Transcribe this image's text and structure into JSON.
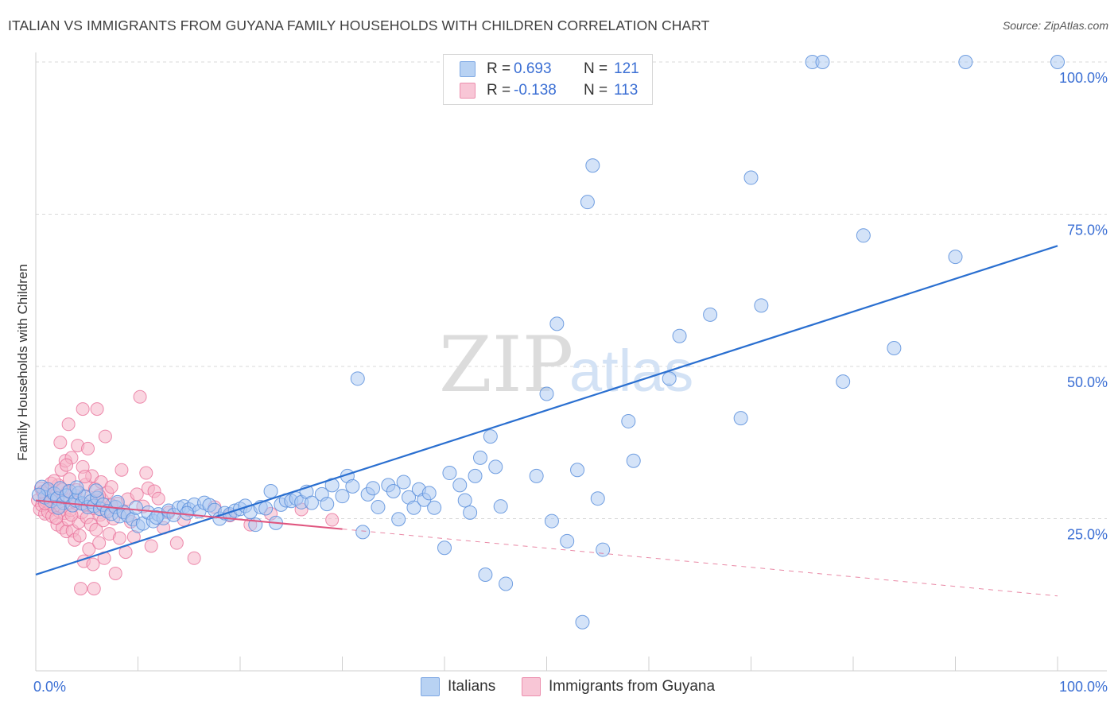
{
  "title": "ITALIAN VS IMMIGRANTS FROM GUYANA FAMILY HOUSEHOLDS WITH CHILDREN CORRELATION CHART",
  "source": "Source: ZipAtlas.com",
  "watermark": {
    "zip": "ZIP",
    "atlas": "atlas"
  },
  "legend": {
    "italians": {
      "r_label": "R =",
      "r_value": "0.693",
      "n_label": "N =",
      "n_value": "121"
    },
    "guyana": {
      "r_label": "R =",
      "r_value": "-0.138",
      "n_label": "N =",
      "n_value": "113"
    }
  },
  "bottom_legend": {
    "italians": "Italians",
    "guyana": "Immigrants from Guyana"
  },
  "colors": {
    "blue_fill": "#a9c8f2",
    "blue_stroke": "#5a8fdc",
    "blue_line": "#2a6fd0",
    "pink_fill": "#f6b5c9",
    "pink_stroke": "#e8709a",
    "pink_line": "#e0557f",
    "tick_text": "#3b6fd4",
    "grid": "#d9d9d9"
  },
  "chart_data": {
    "type": "scatter",
    "xlabel": "",
    "ylabel": "Family Households with Children",
    "xlim": [
      0,
      100
    ],
    "ylim": [
      0,
      105
    ],
    "x_tick_labels": [
      {
        "value": 0,
        "label": "0.0%"
      },
      {
        "value": 100,
        "label": "100.0%"
      }
    ],
    "y_tick_labels": [
      {
        "value": 25,
        "label": "25.0%"
      },
      {
        "value": 50,
        "label": "50.0%"
      },
      {
        "value": 75,
        "label": "75.0%"
      },
      {
        "value": 100,
        "label": "100.0%"
      }
    ],
    "series": [
      {
        "name": "Italians",
        "trend": {
          "x0": 0,
          "y0": 15.8,
          "x1": 100,
          "y1": 69.8,
          "dashed_from": null
        },
        "points": [
          [
            0.6,
            30.2
          ],
          [
            0.9,
            28.5
          ],
          [
            1.2,
            29.8
          ],
          [
            1.5,
            27.9
          ],
          [
            1.8,
            29.1
          ],
          [
            2.1,
            28.3
          ],
          [
            2.4,
            30.0
          ],
          [
            2.7,
            27.6
          ],
          [
            3.0,
            28.8
          ],
          [
            3.3,
            29.5
          ],
          [
            3.6,
            27.2
          ],
          [
            3.9,
            28.0
          ],
          [
            4.2,
            29.2
          ],
          [
            4.5,
            27.5
          ],
          [
            4.8,
            28.6
          ],
          [
            5.1,
            26.9
          ],
          [
            5.4,
            27.8
          ],
          [
            5.7,
            27.1
          ],
          [
            6.0,
            28.4
          ],
          [
            6.3,
            26.6
          ],
          [
            6.6,
            27.3
          ],
          [
            7.0,
            26.2
          ],
          [
            7.4,
            25.8
          ],
          [
            7.8,
            26.9
          ],
          [
            8.2,
            25.4
          ],
          [
            8.6,
            26.1
          ],
          [
            9.0,
            25.5
          ],
          [
            9.5,
            24.9
          ],
          [
            10.0,
            23.8
          ],
          [
            10.5,
            24.2
          ],
          [
            11.0,
            26.0
          ],
          [
            11.5,
            24.6
          ],
          [
            12.0,
            25.7
          ],
          [
            12.5,
            25.1
          ],
          [
            13.0,
            26.3
          ],
          [
            13.5,
            25.6
          ],
          [
            14.0,
            26.8
          ],
          [
            14.5,
            27.0
          ],
          [
            15.0,
            26.5
          ],
          [
            15.5,
            27.3
          ],
          [
            16.0,
            26.2
          ],
          [
            16.5,
            27.6
          ],
          [
            17.0,
            27.2
          ],
          [
            17.5,
            26.4
          ],
          [
            18.0,
            25.0
          ],
          [
            18.5,
            25.9
          ],
          [
            19.0,
            25.7
          ],
          [
            19.5,
            26.3
          ],
          [
            20.0,
            26.6
          ],
          [
            20.5,
            27.1
          ],
          [
            21.0,
            26.1
          ],
          [
            21.5,
            24.0
          ],
          [
            22.0,
            26.9
          ],
          [
            22.5,
            26.7
          ],
          [
            23.0,
            29.5
          ],
          [
            23.5,
            24.3
          ],
          [
            24.0,
            27.3
          ],
          [
            24.5,
            28.0
          ],
          [
            25.0,
            27.9
          ],
          [
            25.5,
            28.3
          ],
          [
            26.0,
            27.7
          ],
          [
            26.5,
            29.4
          ],
          [
            27.0,
            27.6
          ],
          [
            28.0,
            29.0
          ],
          [
            28.5,
            27.4
          ],
          [
            29.0,
            30.5
          ],
          [
            30.0,
            28.7
          ],
          [
            30.5,
            32.0
          ],
          [
            31.0,
            30.3
          ],
          [
            32.0,
            22.8
          ],
          [
            32.5,
            29.0
          ],
          [
            33.0,
            30.0
          ],
          [
            33.5,
            26.9
          ],
          [
            34.5,
            30.5
          ],
          [
            35.0,
            29.5
          ],
          [
            35.5,
            24.9
          ],
          [
            36.0,
            31.0
          ],
          [
            36.5,
            28.5
          ],
          [
            37.0,
            26.8
          ],
          [
            37.5,
            29.8
          ],
          [
            38.0,
            28.1
          ],
          [
            38.5,
            29.2
          ],
          [
            39.0,
            26.8
          ],
          [
            40.0,
            20.2
          ],
          [
            40.5,
            32.5
          ],
          [
            41.5,
            30.5
          ],
          [
            42.0,
            28.0
          ],
          [
            42.5,
            26.0
          ],
          [
            43.0,
            32.0
          ],
          [
            43.5,
            35.0
          ],
          [
            44.0,
            15.8
          ],
          [
            44.5,
            38.5
          ],
          [
            45.0,
            33.5
          ],
          [
            45.5,
            27.0
          ],
          [
            46.0,
            14.3
          ],
          [
            49.0,
            32.0
          ],
          [
            50.0,
            45.5
          ],
          [
            50.5,
            24.6
          ],
          [
            51.0,
            57.0
          ],
          [
            52.0,
            21.3
          ],
          [
            53.0,
            33.0
          ],
          [
            53.5,
            8.0
          ],
          [
            54.0,
            77.0
          ],
          [
            54.5,
            83.0
          ],
          [
            55.0,
            28.3
          ],
          [
            55.5,
            19.9
          ],
          [
            58.0,
            41.0
          ],
          [
            58.5,
            34.5
          ],
          [
            62.0,
            48.0
          ],
          [
            63.0,
            55.0
          ],
          [
            66.0,
            58.5
          ],
          [
            69.0,
            41.5
          ],
          [
            70.0,
            81.0
          ],
          [
            71.0,
            60.0
          ],
          [
            79.0,
            47.5
          ],
          [
            81.0,
            71.5
          ],
          [
            84.0,
            53.0
          ],
          [
            90.0,
            68.0
          ],
          [
            76.0,
            100.0
          ],
          [
            77.0,
            100.0
          ],
          [
            91.0,
            100.0
          ],
          [
            100.0,
            100.0
          ],
          [
            31.5,
            48.0
          ],
          [
            0.3,
            28.9
          ],
          [
            2.2,
            26.8
          ],
          [
            4.0,
            30.1
          ],
          [
            5.9,
            29.6
          ],
          [
            8.0,
            27.7
          ],
          [
            9.8,
            26.8
          ],
          [
            11.8,
            25.2
          ],
          [
            14.8,
            25.9
          ]
        ]
      },
      {
        "name": "Immigrants from Guyana",
        "trend": {
          "x0": 0,
          "y0": 28.0,
          "x1": 100,
          "y1": 12.3,
          "solid_to": 30
        },
        "points": [
          [
            0.2,
            28.0
          ],
          [
            0.4,
            26.5
          ],
          [
            0.5,
            30.0
          ],
          [
            0.6,
            27.2
          ],
          [
            0.8,
            29.1
          ],
          [
            0.9,
            25.8
          ],
          [
            1.0,
            27.9
          ],
          [
            1.1,
            28.7
          ],
          [
            1.2,
            26.1
          ],
          [
            1.3,
            29.6
          ],
          [
            1.4,
            27.4
          ],
          [
            1.5,
            28.2
          ],
          [
            1.6,
            25.4
          ],
          [
            1.7,
            29.0
          ],
          [
            1.8,
            26.8
          ],
          [
            1.9,
            27.7
          ],
          [
            2.0,
            28.9
          ],
          [
            2.1,
            24.0
          ],
          [
            2.2,
            30.5
          ],
          [
            2.3,
            26.2
          ],
          [
            2.4,
            27.1
          ],
          [
            2.5,
            33.0
          ],
          [
            2.6,
            23.5
          ],
          [
            2.7,
            28.4
          ],
          [
            2.8,
            25.9
          ],
          [
            2.9,
            34.5
          ],
          [
            3.0,
            22.9
          ],
          [
            3.1,
            29.4
          ],
          [
            3.2,
            24.8
          ],
          [
            3.3,
            31.5
          ],
          [
            3.4,
            26.4
          ],
          [
            3.5,
            35.0
          ],
          [
            3.6,
            23.0
          ],
          [
            3.7,
            27.8
          ],
          [
            3.8,
            21.5
          ],
          [
            3.9,
            28.8
          ],
          [
            4.0,
            29.7
          ],
          [
            4.1,
            37.0
          ],
          [
            4.2,
            24.4
          ],
          [
            4.3,
            22.2
          ],
          [
            4.4,
            13.5
          ],
          [
            4.5,
            26.0
          ],
          [
            4.6,
            33.5
          ],
          [
            4.7,
            18.0
          ],
          [
            4.8,
            27.3
          ],
          [
            4.9,
            30.6
          ],
          [
            5.0,
            25.2
          ],
          [
            5.1,
            36.5
          ],
          [
            5.2,
            20.0
          ],
          [
            5.3,
            28.5
          ],
          [
            5.4,
            24.0
          ],
          [
            5.5,
            32.0
          ],
          [
            5.6,
            17.5
          ],
          [
            5.7,
            26.7
          ],
          [
            5.8,
            29.9
          ],
          [
            5.9,
            23.2
          ],
          [
            6.0,
            43.0
          ],
          [
            6.1,
            27.6
          ],
          [
            6.2,
            21.0
          ],
          [
            6.3,
            25.6
          ],
          [
            6.4,
            31.0
          ],
          [
            6.5,
            28.1
          ],
          [
            6.6,
            24.7
          ],
          [
            6.7,
            18.5
          ],
          [
            6.8,
            38.5
          ],
          [
            6.9,
            26.3
          ],
          [
            7.0,
            29.3
          ],
          [
            7.2,
            22.5
          ],
          [
            7.4,
            30.2
          ],
          [
            7.6,
            25.0
          ],
          [
            7.8,
            16.0
          ],
          [
            8.0,
            27.5
          ],
          [
            8.2,
            21.8
          ],
          [
            8.4,
            33.0
          ],
          [
            8.6,
            26.0
          ],
          [
            8.8,
            19.5
          ],
          [
            9.0,
            28.2
          ],
          [
            9.3,
            24.5
          ],
          [
            9.6,
            22.0
          ],
          [
            9.9,
            29.0
          ],
          [
            10.2,
            45.0
          ],
          [
            10.5,
            27.0
          ],
          [
            10.8,
            32.5
          ],
          [
            11.0,
            30.0
          ],
          [
            11.3,
            20.5
          ],
          [
            11.6,
            29.5
          ],
          [
            12.0,
            28.3
          ],
          [
            12.5,
            23.5
          ],
          [
            13.0,
            26.0
          ],
          [
            13.8,
            21.0
          ],
          [
            14.5,
            24.8
          ],
          [
            15.5,
            18.5
          ],
          [
            17.5,
            26.9
          ],
          [
            19.0,
            25.5
          ],
          [
            21.0,
            24.0
          ],
          [
            23.0,
            25.8
          ],
          [
            26.0,
            26.5
          ],
          [
            29.0,
            24.8
          ],
          [
            3.2,
            40.5
          ],
          [
            4.6,
            43.0
          ],
          [
            2.4,
            37.5
          ],
          [
            5.7,
            13.5
          ],
          [
            0.7,
            29.4
          ],
          [
            1.5,
            30.8
          ],
          [
            2.0,
            25.1
          ],
          [
            3.0,
            33.8
          ],
          [
            0.9,
            27.5
          ],
          [
            1.8,
            31.2
          ],
          [
            2.6,
            29.8
          ],
          [
            3.5,
            25.6
          ],
          [
            4.8,
            31.9
          ],
          [
            6.2,
            28.8
          ],
          [
            7.4,
            27.2
          ]
        ]
      }
    ]
  }
}
